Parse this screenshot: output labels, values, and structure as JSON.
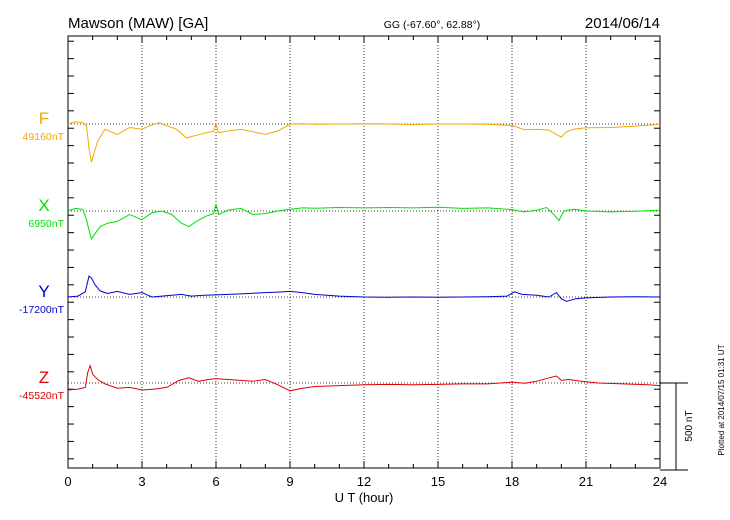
{
  "header": {
    "station": "Mawson (MAW)  [GA]",
    "coords": "GG (-67.60°,  62.88°)",
    "date": "2014/06/14"
  },
  "footer": {
    "plotted": "Plotted at 2014/07/15 01:31  UT"
  },
  "chart_data": {
    "type": "line",
    "xlabel": "U T (hour)",
    "xlim": [
      0,
      24
    ],
    "xticks": [
      0,
      3,
      6,
      9,
      12,
      15,
      18,
      21,
      24
    ],
    "scale_bar_label": "500 nT",
    "scale_bar_nT": 500,
    "series": [
      {
        "name": "F",
        "baseline_label": "49160nT",
        "baseline_nT": 49160,
        "color": "#f5a800",
        "points": [
          [
            0,
            49160
          ],
          [
            0.3,
            49172
          ],
          [
            0.6,
            49168
          ],
          [
            0.75,
            49150
          ],
          [
            0.85,
            49020
          ],
          [
            0.95,
            48940
          ],
          [
            1.05,
            48990
          ],
          [
            1.2,
            49060
          ],
          [
            1.5,
            49130
          ],
          [
            2.0,
            49100
          ],
          [
            2.5,
            49140
          ],
          [
            3.0,
            49130
          ],
          [
            3.3,
            49150
          ],
          [
            3.7,
            49168
          ],
          [
            4.0,
            49150
          ],
          [
            4.4,
            49130
          ],
          [
            4.8,
            49080
          ],
          [
            5.2,
            49095
          ],
          [
            5.6,
            49110
          ],
          [
            5.9,
            49118
          ],
          [
            6.0,
            49160
          ],
          [
            6.1,
            49110
          ],
          [
            6.5,
            49120
          ],
          [
            7.0,
            49130
          ],
          [
            7.5,
            49115
          ],
          [
            8.0,
            49100
          ],
          [
            8.5,
            49120
          ],
          [
            9.0,
            49158
          ],
          [
            9.5,
            49162
          ],
          [
            10.0,
            49158
          ],
          [
            11.0,
            49160
          ],
          [
            12.0,
            49162
          ],
          [
            13.0,
            49160
          ],
          [
            14.0,
            49157
          ],
          [
            15.0,
            49160
          ],
          [
            16.0,
            49160
          ],
          [
            17.0,
            49158
          ],
          [
            18.0,
            49152
          ],
          [
            18.5,
            49128
          ],
          [
            19.0,
            49130
          ],
          [
            19.5,
            49125
          ],
          [
            19.8,
            49100
          ],
          [
            20.0,
            49085
          ],
          [
            20.2,
            49115
          ],
          [
            20.5,
            49130
          ],
          [
            21.0,
            49138
          ],
          [
            22.0,
            49140
          ],
          [
            23.0,
            49148
          ],
          [
            24.0,
            49158
          ]
        ]
      },
      {
        "name": "X",
        "baseline_label": "6950nT",
        "baseline_nT": 6950,
        "color": "#00e000",
        "points": [
          [
            0,
            6950
          ],
          [
            0.3,
            6965
          ],
          [
            0.6,
            6960
          ],
          [
            0.75,
            6900
          ],
          [
            0.85,
            6840
          ],
          [
            0.95,
            6790
          ],
          [
            1.1,
            6820
          ],
          [
            1.3,
            6860
          ],
          [
            1.6,
            6880
          ],
          [
            2.0,
            6890
          ],
          [
            2.5,
            6930
          ],
          [
            3.0,
            6900
          ],
          [
            3.4,
            6940
          ],
          [
            3.8,
            6950
          ],
          [
            4.2,
            6930
          ],
          [
            4.6,
            6880
          ],
          [
            4.9,
            6860
          ],
          [
            5.2,
            6890
          ],
          [
            5.6,
            6920
          ],
          [
            5.9,
            6935
          ],
          [
            6.0,
            6990
          ],
          [
            6.1,
            6930
          ],
          [
            6.5,
            6955
          ],
          [
            7.0,
            6965
          ],
          [
            7.5,
            6930
          ],
          [
            8.0,
            6935
          ],
          [
            8.5,
            6950
          ],
          [
            9.0,
            6960
          ],
          [
            9.5,
            6968
          ],
          [
            10.0,
            6966
          ],
          [
            11.0,
            6970
          ],
          [
            12.0,
            6968
          ],
          [
            13.0,
            6970
          ],
          [
            14.0,
            6968
          ],
          [
            15.0,
            6972
          ],
          [
            16.0,
            6965
          ],
          [
            17.0,
            6968
          ],
          [
            18.0,
            6958
          ],
          [
            18.5,
            6945
          ],
          [
            19.0,
            6955
          ],
          [
            19.4,
            6970
          ],
          [
            19.7,
            6930
          ],
          [
            19.9,
            6895
          ],
          [
            20.1,
            6950
          ],
          [
            20.5,
            6960
          ],
          [
            21.0,
            6950
          ],
          [
            22.0,
            6945
          ],
          [
            23.0,
            6948
          ],
          [
            24.0,
            6955
          ]
        ]
      },
      {
        "name": "Y",
        "baseline_label": "-17200nT",
        "baseline_nT": -17200,
        "color": "#0000d0",
        "points": [
          [
            0,
            -17200
          ],
          [
            0.4,
            -17195
          ],
          [
            0.7,
            -17170
          ],
          [
            0.85,
            -17080
          ],
          [
            0.95,
            -17090
          ],
          [
            1.1,
            -17130
          ],
          [
            1.3,
            -17165
          ],
          [
            1.6,
            -17180
          ],
          [
            2.0,
            -17168
          ],
          [
            2.5,
            -17185
          ],
          [
            3.0,
            -17175
          ],
          [
            3.4,
            -17200
          ],
          [
            3.8,
            -17195
          ],
          [
            4.2,
            -17190
          ],
          [
            4.6,
            -17185
          ],
          [
            5.0,
            -17195
          ],
          [
            5.5,
            -17190
          ],
          [
            6.0,
            -17188
          ],
          [
            6.5,
            -17185
          ],
          [
            7.0,
            -17182
          ],
          [
            7.5,
            -17178
          ],
          [
            8.0,
            -17175
          ],
          [
            8.5,
            -17172
          ],
          [
            9.0,
            -17168
          ],
          [
            9.5,
            -17175
          ],
          [
            10.0,
            -17185
          ],
          [
            11.0,
            -17195
          ],
          [
            12.0,
            -17200
          ],
          [
            13.0,
            -17202
          ],
          [
            14.0,
            -17200
          ],
          [
            15.0,
            -17202
          ],
          [
            16.0,
            -17200
          ],
          [
            17.0,
            -17198
          ],
          [
            17.8,
            -17195
          ],
          [
            18.1,
            -17170
          ],
          [
            18.4,
            -17185
          ],
          [
            19.0,
            -17190
          ],
          [
            19.5,
            -17200
          ],
          [
            19.8,
            -17175
          ],
          [
            20.0,
            -17210
          ],
          [
            20.2,
            -17225
          ],
          [
            20.6,
            -17210
          ],
          [
            21.0,
            -17205
          ],
          [
            22.0,
            -17200
          ],
          [
            23.0,
            -17198
          ],
          [
            24.0,
            -17200
          ]
        ]
      },
      {
        "name": "Z",
        "baseline_label": "-45520nT",
        "baseline_nT": -45520,
        "color": "#e00000",
        "points": [
          [
            0,
            -45560
          ],
          [
            0.4,
            -45555
          ],
          [
            0.7,
            -45545
          ],
          [
            0.8,
            -45460
          ],
          [
            0.9,
            -45420
          ],
          [
            1.0,
            -45470
          ],
          [
            1.2,
            -45500
          ],
          [
            1.5,
            -45525
          ],
          [
            2.0,
            -45550
          ],
          [
            2.5,
            -45545
          ],
          [
            3.0,
            -45560
          ],
          [
            3.5,
            -45555
          ],
          [
            4.0,
            -45545
          ],
          [
            4.5,
            -45505
          ],
          [
            4.9,
            -45490
          ],
          [
            5.3,
            -45510
          ],
          [
            5.7,
            -45500
          ],
          [
            6.0,
            -45495
          ],
          [
            6.5,
            -45500
          ],
          [
            7.0,
            -45505
          ],
          [
            7.5,
            -45510
          ],
          [
            8.0,
            -45500
          ],
          [
            8.5,
            -45530
          ],
          [
            9.0,
            -45565
          ],
          [
            9.5,
            -45550
          ],
          [
            10.0,
            -45540
          ],
          [
            11.0,
            -45535
          ],
          [
            12.0,
            -45530
          ],
          [
            13.0,
            -45528
          ],
          [
            14.0,
            -45530
          ],
          [
            15.0,
            -45528
          ],
          [
            16.0,
            -45525
          ],
          [
            17.0,
            -45525
          ],
          [
            18.0,
            -45515
          ],
          [
            18.5,
            -45522
          ],
          [
            19.0,
            -45510
          ],
          [
            19.5,
            -45490
          ],
          [
            19.8,
            -45480
          ],
          [
            20.0,
            -45505
          ],
          [
            20.3,
            -45500
          ],
          [
            20.8,
            -45510
          ],
          [
            21.5,
            -45520
          ],
          [
            22.5,
            -45525
          ],
          [
            23.5,
            -45530
          ],
          [
            24.0,
            -45535
          ]
        ]
      }
    ]
  }
}
